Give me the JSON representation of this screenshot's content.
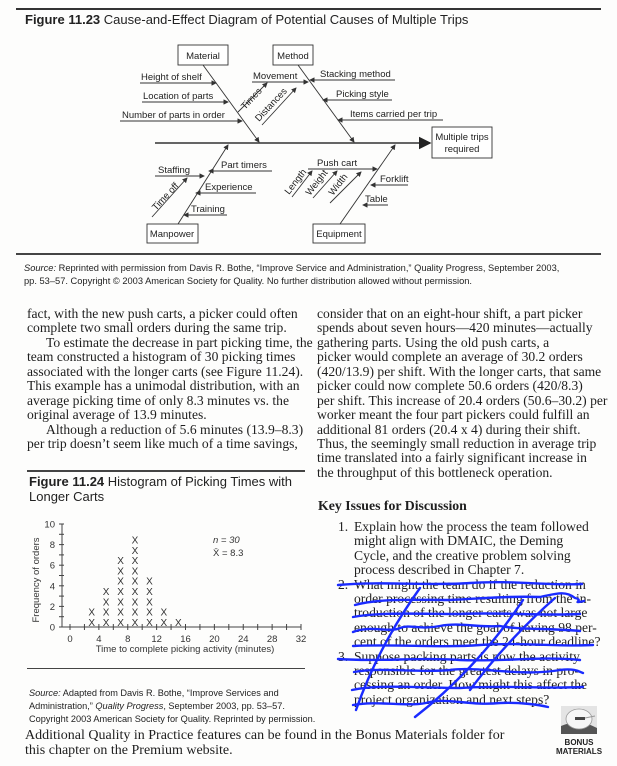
{
  "figure_1123": {
    "label": "Figure 11.23",
    "title": "Cause-and-Effect Diagram of Potential Causes of Multiple Trips",
    "effect_line1": "Multiple trips",
    "effect_line2": "required",
    "categories": {
      "material": "Material",
      "method": "Method",
      "manpower": "Manpower",
      "equipment": "Equipment"
    },
    "causes": {
      "height_of_shelf": "Height of shelf",
      "location_of_parts": "Location of parts",
      "number_of_parts": "Number of parts in order",
      "movement": "Movement",
      "times": "Times",
      "distances": "Distances",
      "stacking_method": "Stacking method",
      "picking_style": "Picking style",
      "items_carried": "Items carried per trip",
      "staffing": "Staffing",
      "time_off": "Time off",
      "part_timers": "Part timers",
      "experience": "Experience",
      "training": "Training",
      "push_cart": "Push cart",
      "length": "Length",
      "weight": "Weight",
      "width": "Width",
      "forklift": "Forklift",
      "table": "Table"
    },
    "source_label": "Source:",
    "source_lines": [
      " Reprinted with permission from Davis R. Bothe, “Improve Service and Administration,” Quality Progress, September 2003,",
      "pp. 53–57. Copyright © 2003 American Society for Quality. No further distribution allowed without permission."
    ]
  },
  "left_column": [
    {
      "indent": false,
      "text": "fact, with the new push carts, a picker could often"
    },
    {
      "indent": false,
      "text": "complete two small orders during the same trip."
    },
    {
      "indent": true,
      "text": "To estimate the decrease in part picking time, the"
    },
    {
      "indent": false,
      "text": "team constructed a histogram of 30 picking times"
    },
    {
      "indent": false,
      "text": "associated with the longer carts (see Figure 11.24)."
    },
    {
      "indent": false,
      "text": "This example has a unimodal distribution, with an"
    },
    {
      "indent": false,
      "text": "average picking time of only 8.3 minutes vs. the"
    },
    {
      "indent": false,
      "text": "original average of 13.9 minutes."
    },
    {
      "indent": true,
      "text": "Although a reduction of 5.6 minutes (13.9–8.3)"
    },
    {
      "indent": false,
      "text": "per trip doesn’t seem like much of a time savings,"
    }
  ],
  "right_column": [
    "consider that on an eight-hour shift, a part picker",
    "spends about seven hours—420 minutes—actually",
    "gathering parts. Using the old push carts, a",
    "picker would complete an average of 30.2 orders",
    "(420/13.9) per shift. With the longer carts, that same",
    "picker could now complete 50.6 orders (420/8.3)",
    "per shift. This increase of 20.4 orders (50.6–30.2) per",
    "worker meant the four part pickers could fulfill an",
    "additional 81 orders (20.4 x 4) during their shift.",
    "Thus, the seemingly small reduction in average trip",
    "time translated into a fairly significant increase in",
    "the throughput of this bottleneck operation."
  ],
  "figure_1124": {
    "label": "Figure 11.24",
    "title_line1": "Histogram of Picking Times with",
    "title_line2": "Longer Carts",
    "source_label": "Source:",
    "source_line1_rest": " Adapted from Davis R. Bothe, “Improve Services and",
    "source_line2_a": "Administration,”",
    "source_line2_italic": "Quality Progress",
    "source_line2_b": ", September 2003, pp. 53–57.",
    "source_line3": "Copyright 2003 American Society for Quality. Reprinted by permission."
  },
  "chart_data": {
    "type": "bar",
    "style": "dot plot of X marks",
    "x": [
      3,
      5,
      7,
      9,
      11,
      13,
      15
    ],
    "values": [
      2,
      4,
      7,
      9,
      5,
      2,
      1
    ],
    "mark": "X",
    "xlabel": "Time to complete picking activity (minutes)",
    "ylabel": "Frequency of orders",
    "xlim": [
      0,
      32
    ],
    "ylim": [
      0,
      10
    ],
    "xticks": [
      "0",
      "4",
      "8",
      "12",
      "16",
      "20",
      "24",
      "28",
      "32"
    ],
    "yticks": [
      "0",
      "2",
      "4",
      "6",
      "8",
      "10"
    ],
    "annotation_n": "n = 30",
    "annotation_mean": "X̄ = 8.3",
    "grid": false
  },
  "key_issues": {
    "heading": "Key Issues for Discussion",
    "items": [
      {
        "num": "1.",
        "lines": [
          "Explain how the process the team followed",
          "might align with DMAIC, the Deming",
          "Cycle, and the creative problem solving",
          "process described in Chapter 7."
        ]
      },
      {
        "num": "2.",
        "lines": [
          "What might the team do if the reduction in",
          "order processing time resulting from the in-",
          "troduction of the longer carts was not large",
          "enough to achieve the goal of having 98 per-",
          "cent of the orders meet the 24-hour deadline?"
        ]
      },
      {
        "num": "3.",
        "lines": [
          "Suppose packing parts is now the activity",
          "responsible for the greatest delays in pro-",
          "cessing an order. How might this affect the",
          "project organization and next steps?"
        ]
      }
    ],
    "annotation_color": "#1a2bff"
  },
  "footer": {
    "line1": "Additional Quality in Practice features can be found in the Bonus Materials folder for",
    "line2": "this chapter on the Premium website.",
    "bonus_line1": "BONUS",
    "bonus_line2": "MATERIALS"
  }
}
